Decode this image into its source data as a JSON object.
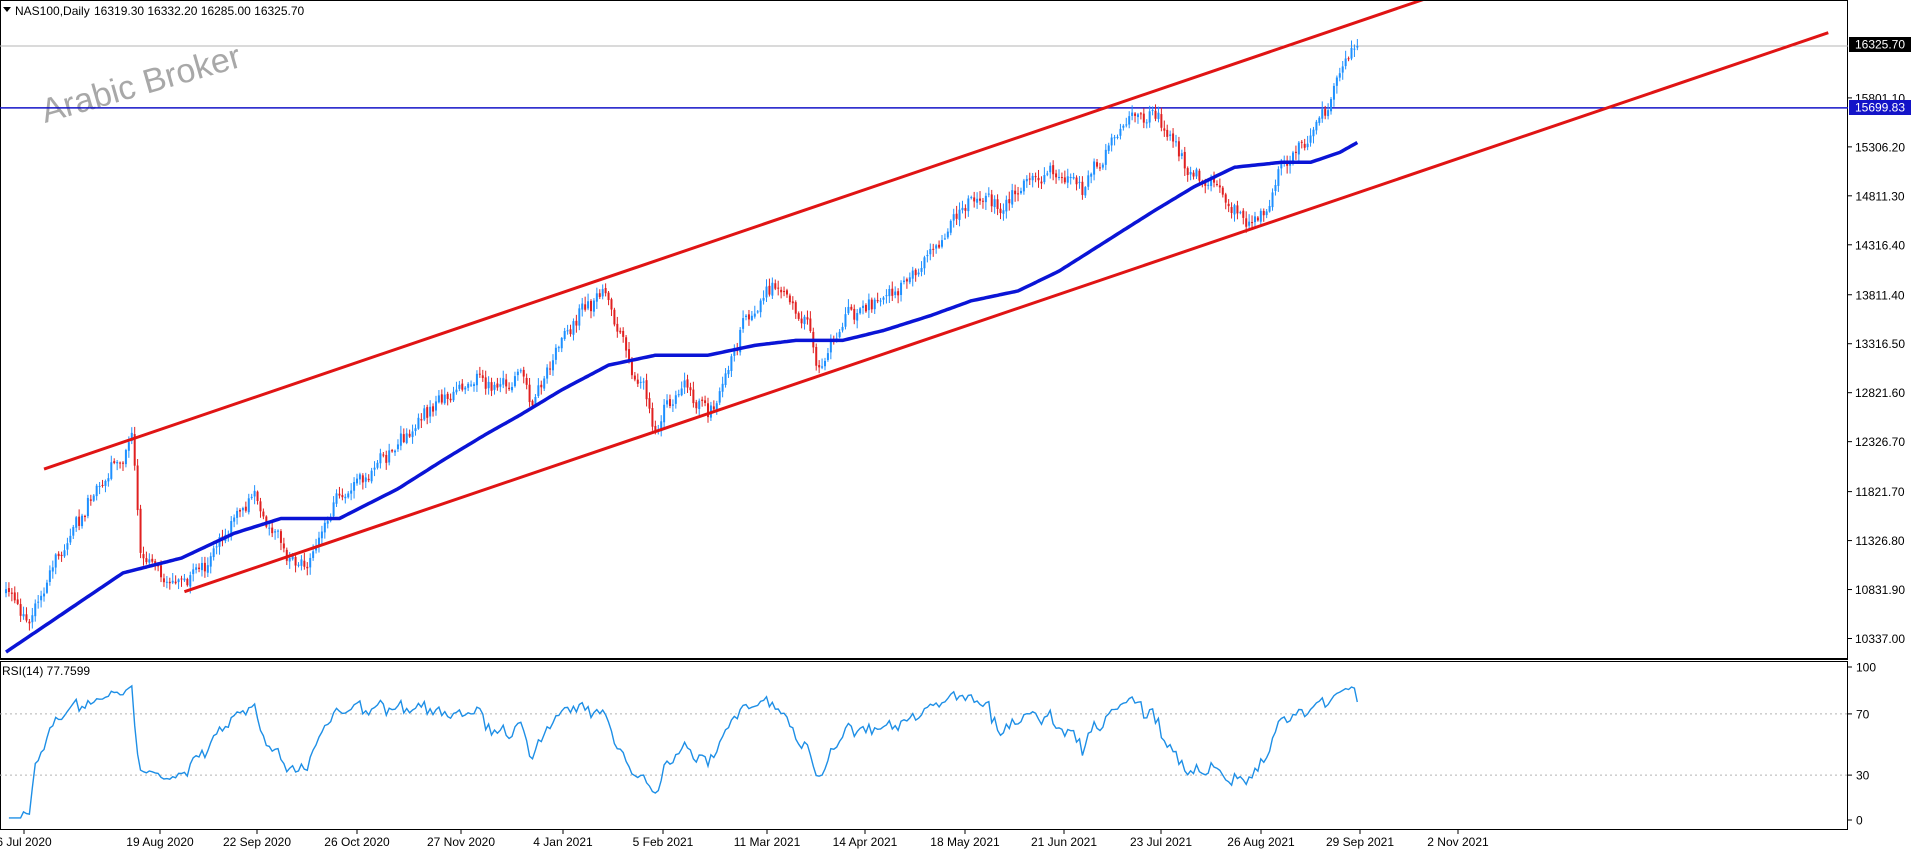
{
  "header": {
    "symbol_label": "NAS100,Daily",
    "ohlc_label": "16319.30 16332.20 16285.00 16325.70",
    "menu_icon": "triangle-down-icon"
  },
  "watermark": "Arabic Broker",
  "price_labels": {
    "last": "16325.70",
    "hline": "15699.83"
  },
  "rsi_header": "RSI(14) 77.7599",
  "colors": {
    "bull": "#1e90ff",
    "bear": "#e02020",
    "ma": "#0a14d6",
    "channel": "#e01414",
    "hline": "#1414c8",
    "rsi": "#1e8fe6",
    "grid": "#b4b4b4",
    "label_bg_last": "#000000",
    "label_bg_hline": "#1414c8"
  },
  "chart_data": [
    {
      "type": "candlestick",
      "title": "",
      "y_ticks": [
        "16325.70",
        "15801.10",
        "15306.20",
        "14811.30",
        "14316.40",
        "13811.40",
        "13316.50",
        "12821.60",
        "12326.70",
        "11821.70",
        "11326.80",
        "10831.90",
        "10337.00"
      ],
      "ylim": [
        10230,
        16650
      ],
      "x_tick_labels": [
        "6 Jul 2020",
        "19 Aug 2020",
        "22 Sep 2020",
        "26 Oct 2020",
        "27 Nov 2020",
        "4 Jan 2021",
        "5 Feb 2021",
        "11 Mar 2021",
        "14 Apr 2021",
        "18 May 2021",
        "21 Jun 2021",
        "23 Jul 2021",
        "26 Aug 2021",
        "29 Sep 2021",
        "2 Nov 2021"
      ],
      "price_anchors": [
        [
          0,
          10850
        ],
        [
          8,
          10500
        ],
        [
          18,
          11200
        ],
        [
          30,
          11800
        ],
        [
          40,
          12200
        ],
        [
          43,
          12420
        ],
        [
          46,
          11200
        ],
        [
          52,
          11000
        ],
        [
          56,
          10900
        ],
        [
          62,
          10950
        ],
        [
          68,
          11100
        ],
        [
          76,
          11450
        ],
        [
          84,
          11800
        ],
        [
          88,
          11600
        ],
        [
          94,
          11300
        ],
        [
          100,
          11050
        ],
        [
          104,
          11150
        ],
        [
          112,
          11700
        ],
        [
          118,
          11900
        ],
        [
          124,
          12000
        ],
        [
          132,
          12250
        ],
        [
          140,
          12500
        ],
        [
          146,
          12700
        ],
        [
          154,
          12820
        ],
        [
          160,
          12950
        ],
        [
          168,
          12880
        ],
        [
          176,
          13000
        ],
        [
          180,
          12700
        ],
        [
          186,
          13100
        ],
        [
          190,
          13400
        ],
        [
          196,
          13600
        ],
        [
          202,
          13800
        ],
        [
          206,
          13750
        ],
        [
          212,
          13200
        ],
        [
          218,
          12850
        ],
        [
          222,
          12400
        ],
        [
          226,
          12700
        ],
        [
          232,
          12900
        ],
        [
          240,
          12600
        ],
        [
          246,
          13000
        ],
        [
          252,
          13500
        ],
        [
          258,
          13750
        ],
        [
          264,
          13950
        ],
        [
          268,
          13750
        ],
        [
          274,
          13500
        ],
        [
          278,
          13050
        ],
        [
          282,
          13300
        ],
        [
          288,
          13600
        ],
        [
          296,
          13700
        ],
        [
          304,
          13850
        ],
        [
          312,
          14100
        ],
        [
          320,
          14400
        ],
        [
          326,
          14650
        ],
        [
          334,
          14800
        ],
        [
          340,
          14650
        ],
        [
          348,
          14950
        ],
        [
          356,
          15050
        ],
        [
          362,
          15000
        ],
        [
          368,
          14900
        ],
        [
          376,
          15250
        ],
        [
          382,
          15550
        ],
        [
          388,
          15650
        ],
        [
          394,
          15600
        ],
        [
          400,
          15300
        ],
        [
          406,
          15000
        ],
        [
          412,
          14950
        ],
        [
          418,
          14700
        ],
        [
          424,
          14550
        ],
        [
          430,
          14600
        ],
        [
          436,
          15100
        ],
        [
          442,
          15300
        ],
        [
          448,
          15500
        ],
        [
          454,
          15900
        ],
        [
          458,
          16250
        ],
        [
          462,
          16325
        ]
      ],
      "ma_anchors": [
        [
          0,
          10200
        ],
        [
          20,
          10600
        ],
        [
          40,
          11000
        ],
        [
          60,
          11150
        ],
        [
          78,
          11400
        ],
        [
          94,
          11550
        ],
        [
          114,
          11550
        ],
        [
          134,
          11850
        ],
        [
          150,
          12150
        ],
        [
          164,
          12400
        ],
        [
          176,
          12600
        ],
        [
          190,
          12850
        ],
        [
          206,
          13100
        ],
        [
          222,
          13200
        ],
        [
          240,
          13200
        ],
        [
          256,
          13300
        ],
        [
          270,
          13350
        ],
        [
          286,
          13350
        ],
        [
          300,
          13450
        ],
        [
          316,
          13600
        ],
        [
          330,
          13750
        ],
        [
          346,
          13850
        ],
        [
          360,
          14050
        ],
        [
          376,
          14350
        ],
        [
          392,
          14650
        ],
        [
          406,
          14900
        ],
        [
          420,
          15100
        ],
        [
          436,
          15150
        ],
        [
          446,
          15150
        ],
        [
          456,
          15250
        ],
        [
          462,
          15350
        ]
      ],
      "channel_lines": [
        {
          "name": "",
          "from": [
            13,
            12050
          ],
          "to": [
            485,
            16800
          ]
        },
        {
          "name": "",
          "from": [
            61,
            10810
          ],
          "to": [
            623,
            16460
          ]
        }
      ],
      "hline": 15699.83,
      "last_price": 16325.7,
      "bar_count": 463
    },
    {
      "type": "line",
      "title": "RSI(14) 77.7599",
      "y_ticks": [
        "100",
        "70",
        "30",
        "0"
      ],
      "levels": [
        70,
        30
      ],
      "ylim": [
        0,
        100
      ],
      "values_note_source": "derived from price series (RSI 14)"
    }
  ]
}
